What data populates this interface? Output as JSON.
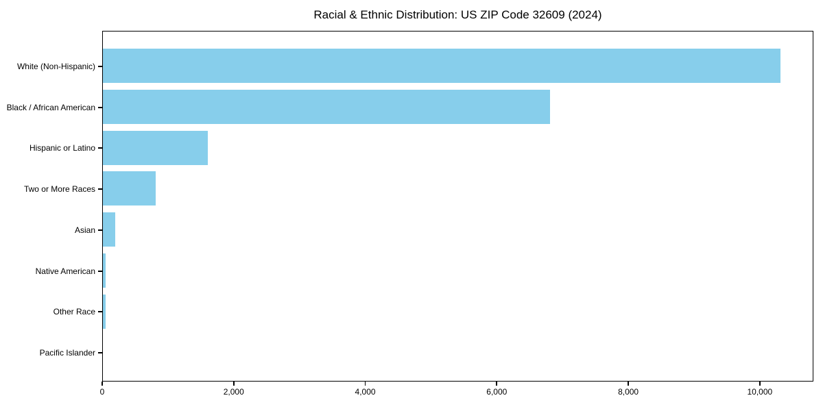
{
  "chart_data": {
    "type": "bar",
    "orientation": "horizontal",
    "title": "Racial & Ethnic Distribution: US ZIP Code 32609 (2024)",
    "categories": [
      "White (Non-Hispanic)",
      "Black / African American",
      "Hispanic or Latino",
      "Two or More Races",
      "Asian",
      "Native American",
      "Other Race",
      "Pacific Islander"
    ],
    "values": [
      10300,
      6800,
      1600,
      800,
      185,
      40,
      40,
      0
    ],
    "xlabel": "",
    "ylabel": "",
    "xlim": [
      0,
      10815
    ],
    "xticks": {
      "values": [
        0,
        2000,
        4000,
        6000,
        8000,
        10000
      ],
      "labels": [
        "0",
        "2,000",
        "4,000",
        "6,000",
        "8,000",
        "10,000"
      ]
    },
    "grid": false,
    "legend": null,
    "bar_color": "#87CEEB",
    "axis_color": "#000000",
    "text_color": "#000000",
    "background_color": "#ffffff"
  }
}
